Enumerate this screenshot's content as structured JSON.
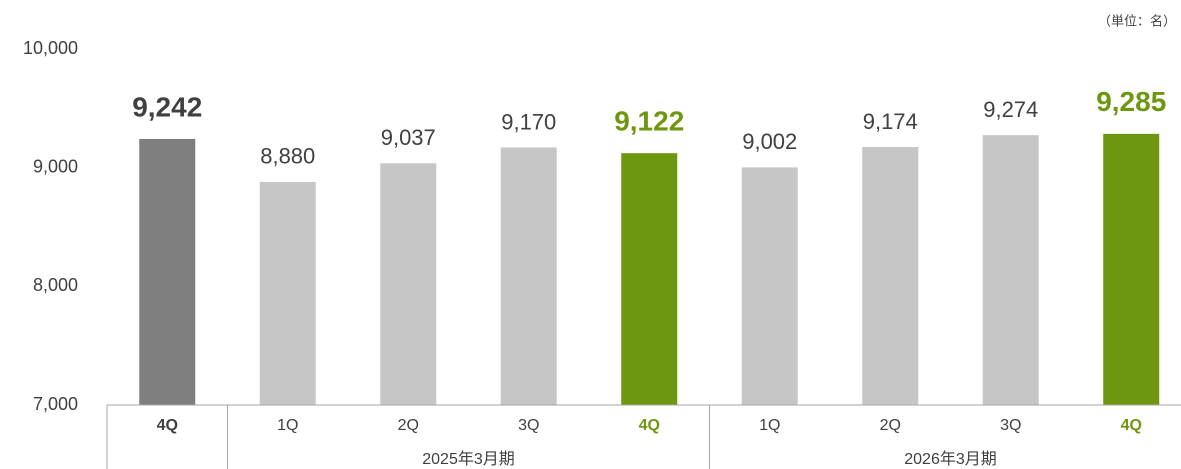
{
  "chart_data": {
    "type": "bar",
    "unit_label": "（単位：名）",
    "categories": [
      "4Q",
      "1Q",
      "2Q",
      "3Q",
      "4Q",
      "1Q",
      "2Q",
      "3Q",
      "4Q"
    ],
    "values": [
      9242,
      8880,
      9037,
      9170,
      9122,
      9002,
      9174,
      9274,
      9285
    ],
    "value_labels": [
      "9,242",
      "8,880",
      "9,037",
      "9,170",
      "9,122",
      "9,002",
      "9,174",
      "9,274",
      "9,285"
    ],
    "colors": [
      "#7f7f7f",
      "#c6c6c6",
      "#c6c6c6",
      "#c6c6c6",
      "#6e970f",
      "#c6c6c6",
      "#c6c6c6",
      "#c6c6c6",
      "#6e970f"
    ],
    "groups": [
      {
        "label": "2025年3月期",
        "start": 1,
        "end": 4
      },
      {
        "label": "2026年3月期",
        "start": 5,
        "end": 8
      }
    ],
    "ylim": [
      7000,
      10000
    ],
    "yticks": [
      {
        "value": 7000,
        "label": "7,000"
      },
      {
        "value": 8000,
        "label": "8,000"
      },
      {
        "value": 9000,
        "label": "9,000"
      },
      {
        "value": 10000,
        "label": "10,000"
      }
    ],
    "grid": false
  }
}
